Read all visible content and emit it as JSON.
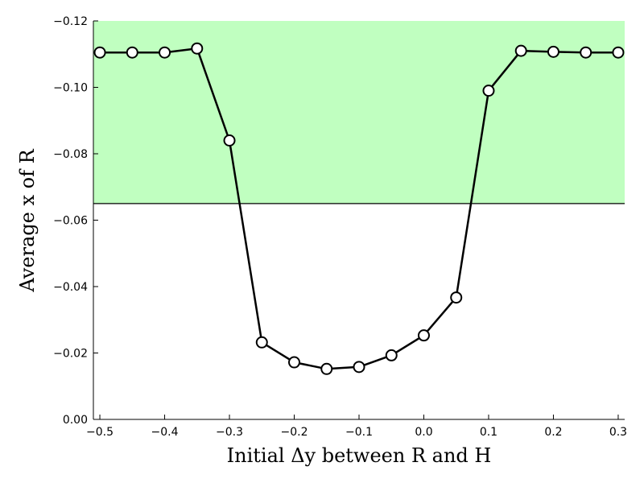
{
  "chart_data": {
    "type": "line",
    "xlabel": "Initial Δy between R and H",
    "ylabel": "Average x of R",
    "xlim": [
      -0.51,
      0.31
    ],
    "ylim": [
      0.0,
      -0.12
    ],
    "y_axis_inverted": true,
    "x_ticks": [
      -0.5,
      -0.4,
      -0.3,
      -0.2,
      -0.1,
      0.0,
      0.1,
      0.2,
      0.3
    ],
    "x_tick_labels": [
      "−0.5",
      "−0.4",
      "−0.3",
      "−0.2",
      "−0.1",
      "0.0",
      "0.1",
      "0.2",
      "0.3"
    ],
    "y_ticks": [
      0.0,
      -0.02,
      -0.04,
      -0.06,
      -0.08,
      -0.1,
      -0.12
    ],
    "y_tick_labels": [
      "0.00",
      "−0.02",
      "−0.04",
      "−0.06",
      "−0.08",
      "−0.10",
      "−0.12"
    ],
    "grid": false,
    "threshold": -0.065,
    "shaded_region": {
      "from": -0.065,
      "to": -0.12,
      "color": "#c0ffc0"
    },
    "series": [
      {
        "x": [
          -0.5,
          -0.45,
          -0.4,
          -0.35,
          -0.3,
          -0.25,
          -0.2,
          -0.15,
          -0.1,
          -0.05,
          0.0,
          0.05,
          0.1,
          0.15,
          0.2,
          0.25,
          0.3
        ],
        "values": [
          -0.1105,
          -0.1105,
          -0.1105,
          -0.1117,
          -0.084,
          -0.0232,
          -0.0172,
          -0.0152,
          -0.0158,
          -0.0193,
          -0.0253,
          -0.0367,
          -0.099,
          -0.111,
          -0.1107,
          -0.1105,
          -0.1105
        ],
        "line_color": "#000000",
        "marker": "circle",
        "marker_fill": "#ffffff"
      }
    ]
  }
}
